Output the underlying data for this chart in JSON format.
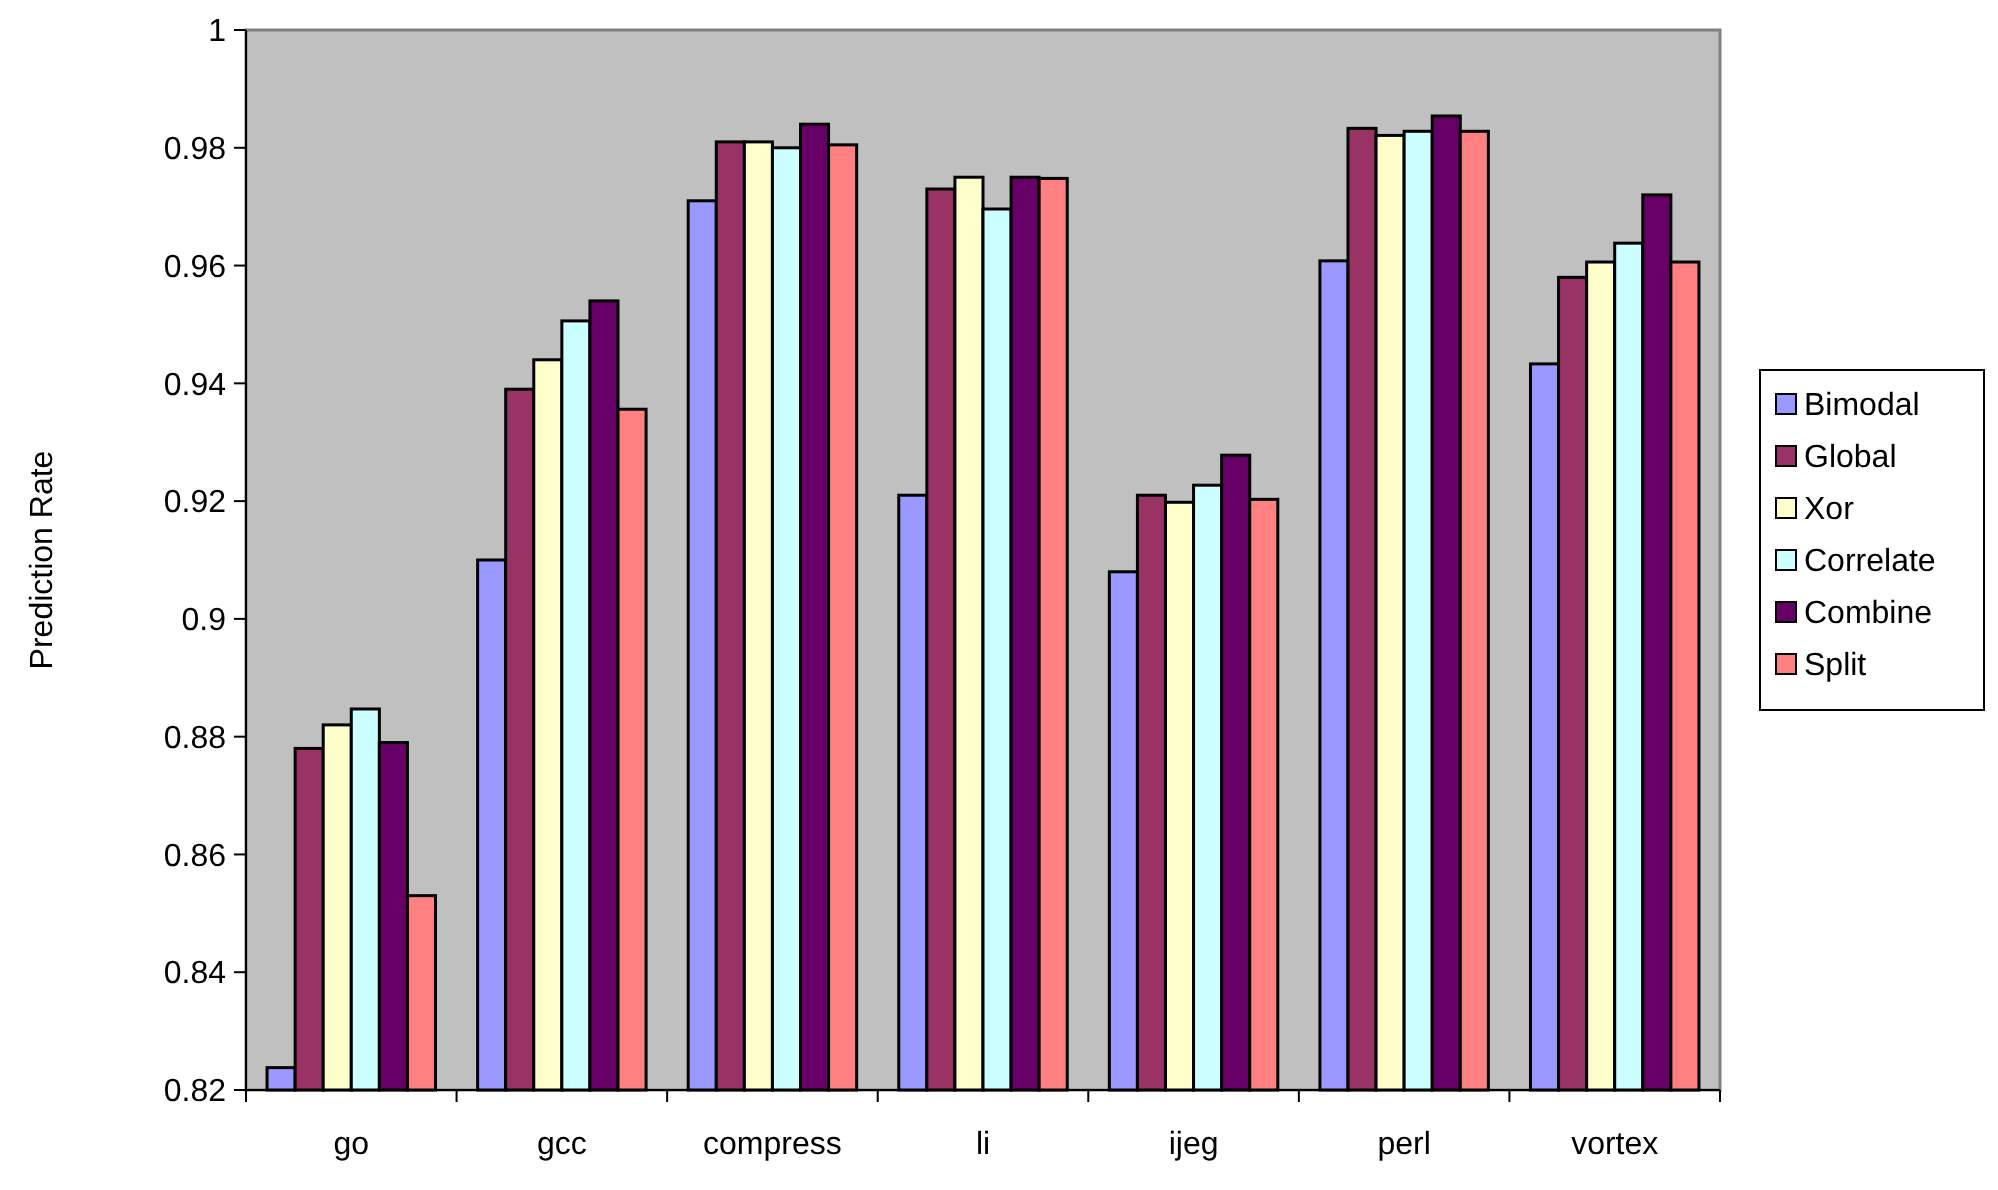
{
  "chart_data": {
    "type": "bar",
    "ylabel": "Prediction Rate",
    "categories": [
      "go",
      "gcc",
      "compress",
      "li",
      "ijeg",
      "perl",
      "vortex"
    ],
    "series": [
      {
        "name": "Bimodal",
        "color": "#9999ff",
        "values": [
          0.8238,
          0.91,
          0.971,
          0.921,
          0.908,
          0.9608,
          0.9433
        ]
      },
      {
        "name": "Global",
        "color": "#993366",
        "values": [
          0.878,
          0.939,
          0.981,
          0.973,
          0.921,
          0.9833,
          0.958
        ]
      },
      {
        "name": "Xor",
        "color": "#ffffcc",
        "values": [
          0.882,
          0.944,
          0.981,
          0.975,
          0.9198,
          0.9821,
          0.9606
        ]
      },
      {
        "name": "Correlate",
        "color": "#ccffff",
        "values": [
          0.8847,
          0.9506,
          0.98,
          0.9696,
          0.9227,
          0.9828,
          0.9638
        ]
      },
      {
        "name": "Combine",
        "color": "#660066",
        "values": [
          0.879,
          0.954,
          0.984,
          0.975,
          0.9278,
          0.9854,
          0.972
        ]
      },
      {
        "name": "Split",
        "color": "#ff8080",
        "values": [
          0.853,
          0.9356,
          0.9805,
          0.9748,
          0.9203,
          0.9828,
          0.9606
        ]
      }
    ],
    "ylim": [
      0.82,
      1
    ],
    "yticks": [
      0.82,
      0.84,
      0.86,
      0.88,
      0.9,
      0.92,
      0.94,
      0.96,
      0.98,
      1
    ],
    "legend": "right"
  }
}
